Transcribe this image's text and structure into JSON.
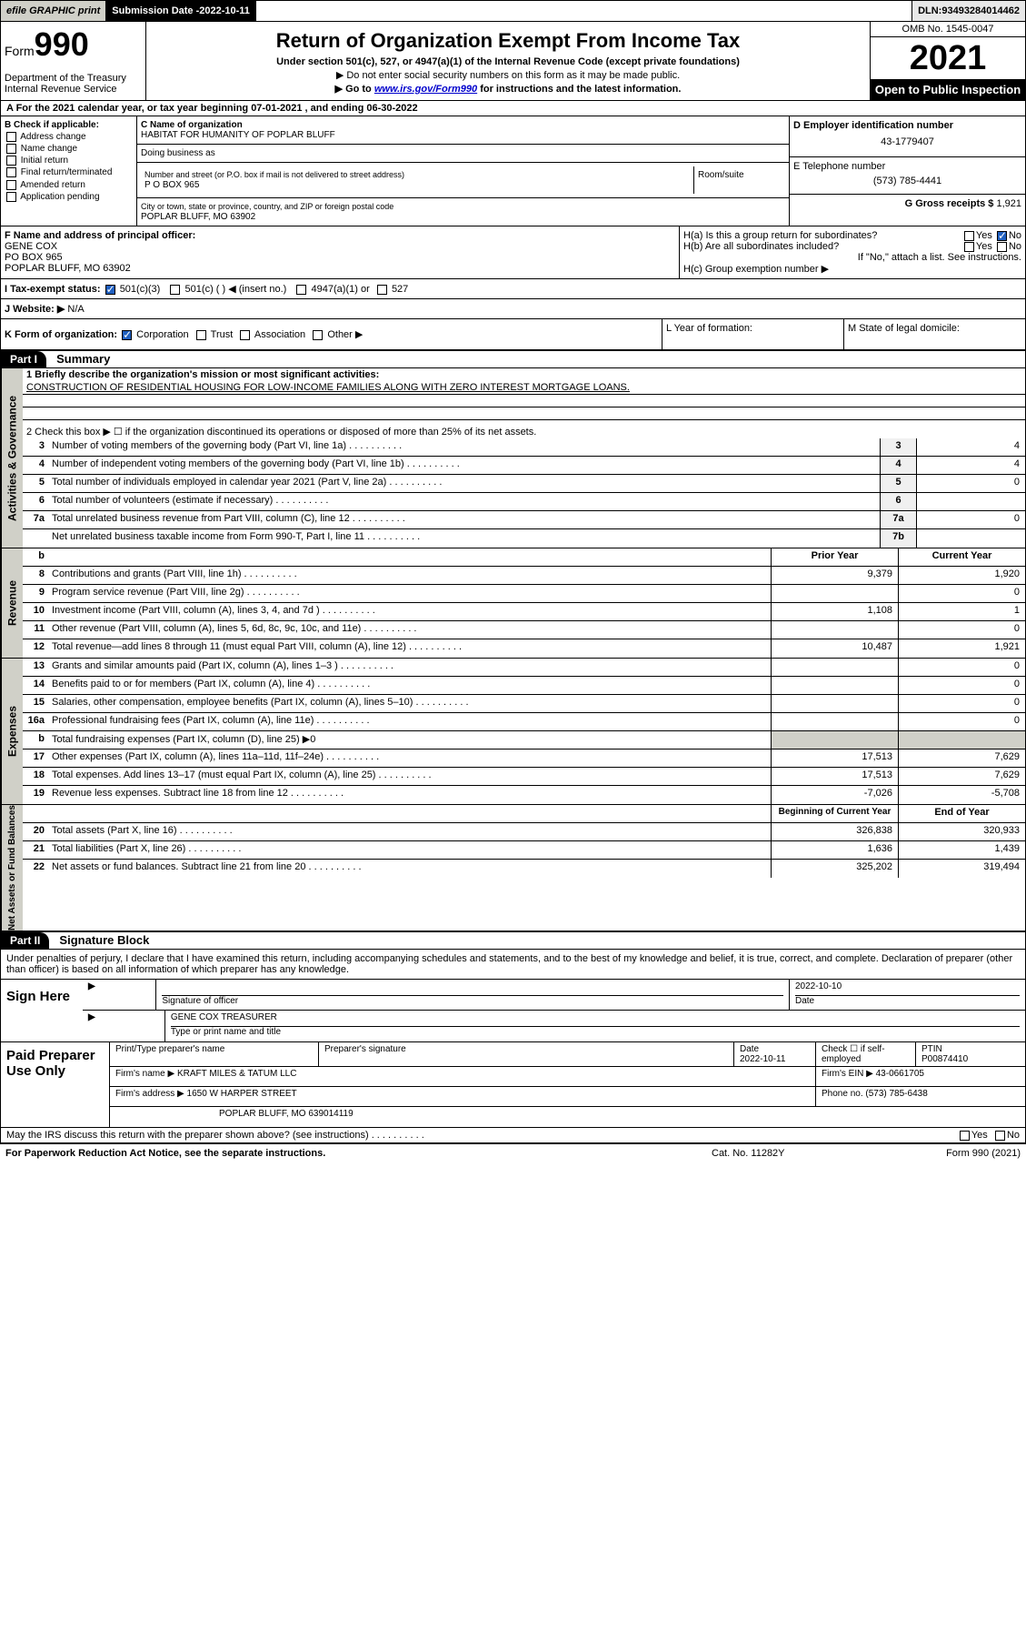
{
  "topbar": {
    "efile": "efile GRAPHIC print",
    "submission_label": "Submission Date - ",
    "submission_date": "2022-10-11",
    "dln_label": "DLN: ",
    "dln": "93493284014462"
  },
  "header": {
    "form_prefix": "Form",
    "form_num": "990",
    "dept": "Department of the Treasury\nInternal Revenue Service",
    "title": "Return of Organization Exempt From Income Tax",
    "sub1": "Under section 501(c), 527, or 4947(a)(1) of the Internal Revenue Code (except private foundations)",
    "sub2": "▶ Do not enter social security numbers on this form as it may be made public.",
    "sub3_pre": "▶ Go to ",
    "sub3_link": "www.irs.gov/Form990",
    "sub3_post": " for instructions and the latest information.",
    "omb": "OMB No. 1545-0047",
    "year": "2021",
    "open": "Open to Public Inspection"
  },
  "row_a": "A For the 2021 calendar year, or tax year beginning 07-01-2021  , and ending 06-30-2022",
  "section_b": {
    "label": "B Check if applicable:",
    "items": [
      "Address change",
      "Name change",
      "Initial return",
      "Final return/terminated",
      "Amended return",
      "Application pending"
    ]
  },
  "section_c": {
    "name_label": "C Name of organization",
    "name": "HABITAT FOR HUMANITY OF POPLAR BLUFF",
    "dba_label": "Doing business as",
    "dba": "",
    "addr_label": "Number and street (or P.O. box if mail is not delivered to street address)",
    "addr": "P O BOX 965",
    "room_label": "Room/suite",
    "city_label": "City or town, state or province, country, and ZIP or foreign postal code",
    "city": "POPLAR BLUFF, MO  63902"
  },
  "section_d": {
    "label": "D Employer identification number",
    "val": "43-1779407"
  },
  "section_e": {
    "label": "E Telephone number",
    "val": "(573) 785-4441"
  },
  "section_g": {
    "label": "G Gross receipts $ ",
    "val": "1,921"
  },
  "section_f": {
    "label": "F  Name and address of principal officer:",
    "name": "GENE COX",
    "addr1": "PO BOX 965",
    "addr2": "POPLAR BLUFF, MO  63902"
  },
  "section_h": {
    "a": "H(a)  Is this a group return for subordinates?",
    "a_yes": "Yes",
    "a_no": "No",
    "b": "H(b)  Are all subordinates included?",
    "b_yes": "Yes",
    "b_no": "No",
    "b_note": "If \"No,\" attach a list. See instructions.",
    "c": "H(c)  Group exemption number ▶"
  },
  "section_i": {
    "label": "I  Tax-exempt status:",
    "opts": [
      "501(c)(3)",
      "501(c) (  ) ◀ (insert no.)",
      "4947(a)(1) or",
      "527"
    ]
  },
  "section_j": {
    "label": "J  Website: ▶",
    "val": "N/A"
  },
  "section_k": "K Form of organization:",
  "k_opts": [
    "Corporation",
    "Trust",
    "Association",
    "Other ▶"
  ],
  "section_l": "L Year of formation:",
  "section_m": "M State of legal domicile:",
  "part1": {
    "num": "Part I",
    "title": "Summary"
  },
  "governance": {
    "label": "Activities & Governance",
    "l1_pre": "1  Briefly describe the organization's mission or most significant activities:",
    "mission": "CONSTRUCTION OF RESIDENTIAL HOUSING FOR LOW-INCOME FAMILIES ALONG WITH ZERO INTEREST MORTGAGE LOANS.",
    "l2": "2  Check this box ▶ ☐  if the organization discontinued its operations or disposed of more than 25% of its net assets.",
    "rows": [
      {
        "n": "3",
        "d": "Number of voting members of the governing body (Part VI, line 1a)",
        "b": "3",
        "v": "4"
      },
      {
        "n": "4",
        "d": "Number of independent voting members of the governing body (Part VI, line 1b)",
        "b": "4",
        "v": "4"
      },
      {
        "n": "5",
        "d": "Total number of individuals employed in calendar year 2021 (Part V, line 2a)",
        "b": "5",
        "v": "0"
      },
      {
        "n": "6",
        "d": "Total number of volunteers (estimate if necessary)",
        "b": "6",
        "v": ""
      },
      {
        "n": "7a",
        "d": "Total unrelated business revenue from Part VIII, column (C), line 12",
        "b": "7a",
        "v": "0"
      },
      {
        "n": "",
        "d": "Net unrelated business taxable income from Form 990-T, Part I, line 11",
        "b": "7b",
        "v": ""
      }
    ]
  },
  "revenue": {
    "label": "Revenue",
    "head_b": "b",
    "head_prior": "Prior Year",
    "head_curr": "Current Year",
    "rows": [
      {
        "n": "8",
        "d": "Contributions and grants (Part VIII, line 1h)",
        "p": "9,379",
        "c": "1,920"
      },
      {
        "n": "9",
        "d": "Program service revenue (Part VIII, line 2g)",
        "p": "",
        "c": "0"
      },
      {
        "n": "10",
        "d": "Investment income (Part VIII, column (A), lines 3, 4, and 7d )",
        "p": "1,108",
        "c": "1"
      },
      {
        "n": "11",
        "d": "Other revenue (Part VIII, column (A), lines 5, 6d, 8c, 9c, 10c, and 11e)",
        "p": "",
        "c": "0"
      },
      {
        "n": "12",
        "d": "Total revenue—add lines 8 through 11 (must equal Part VIII, column (A), line 12)",
        "p": "10,487",
        "c": "1,921"
      }
    ]
  },
  "expenses": {
    "label": "Expenses",
    "rows": [
      {
        "n": "13",
        "d": "Grants and similar amounts paid (Part IX, column (A), lines 1–3 )",
        "p": "",
        "c": "0"
      },
      {
        "n": "14",
        "d": "Benefits paid to or for members (Part IX, column (A), line 4)",
        "p": "",
        "c": "0"
      },
      {
        "n": "15",
        "d": "Salaries, other compensation, employee benefits (Part IX, column (A), lines 5–10)",
        "p": "",
        "c": "0"
      },
      {
        "n": "16a",
        "d": "Professional fundraising fees (Part IX, column (A), line 11e)",
        "p": "",
        "c": "0"
      },
      {
        "n": "b",
        "d": "Total fundraising expenses (Part IX, column (D), line 25) ▶0",
        "p": null,
        "c": null,
        "shaded": true
      },
      {
        "n": "17",
        "d": "Other expenses (Part IX, column (A), lines 11a–11d, 11f–24e)",
        "p": "17,513",
        "c": "7,629"
      },
      {
        "n": "18",
        "d": "Total expenses. Add lines 13–17 (must equal Part IX, column (A), line 25)",
        "p": "17,513",
        "c": "7,629"
      },
      {
        "n": "19",
        "d": "Revenue less expenses. Subtract line 18 from line 12",
        "p": "-7,026",
        "c": "-5,708"
      }
    ]
  },
  "netassets": {
    "label": "Net Assets or Fund Balances",
    "head_beg": "Beginning of Current Year",
    "head_end": "End of Year",
    "rows": [
      {
        "n": "20",
        "d": "Total assets (Part X, line 16)",
        "p": "326,838",
        "c": "320,933"
      },
      {
        "n": "21",
        "d": "Total liabilities (Part X, line 26)",
        "p": "1,636",
        "c": "1,439"
      },
      {
        "n": "22",
        "d": "Net assets or fund balances. Subtract line 21 from line 20",
        "p": "325,202",
        "c": "319,494"
      }
    ]
  },
  "part2": {
    "num": "Part II",
    "title": "Signature Block"
  },
  "sig_text": "Under penalties of perjury, I declare that I have examined this return, including accompanying schedules and statements, and to the best of my knowledge and belief, it is true, correct, and complete. Declaration of preparer (other than officer) is based on all information of which preparer has any knowledge.",
  "sign": {
    "here": "Sign Here",
    "sig_label": "Signature of officer",
    "date_label": "Date",
    "date": "2022-10-10",
    "name": "GENE COX TREASURER",
    "name_label": "Type or print name and title"
  },
  "prep": {
    "label": "Paid Preparer Use Only",
    "h1": "Print/Type preparer's name",
    "h2": "Preparer's signature",
    "h3": "Date",
    "h3v": "2022-10-11",
    "h4": "Check ☐ if self-employed",
    "h5": "PTIN",
    "h5v": "P00874410",
    "firm_label": "Firm's name    ▶",
    "firm": "KRAFT MILES & TATUM LLC",
    "ein_label": "Firm's EIN ▶",
    "ein": "43-0661705",
    "addr_label": "Firm's address ▶",
    "addr1": "1650 W HARPER STREET",
    "addr2": "POPLAR BLUFF, MO  639014119",
    "phone_label": "Phone no. ",
    "phone": "(573) 785-6438"
  },
  "may_irs": "May the IRS discuss this return with the preparer shown above? (see instructions)",
  "may_yes": "Yes",
  "may_no": "No",
  "footer": {
    "l": "For Paperwork Reduction Act Notice, see the separate instructions.",
    "c": "Cat. No. 11282Y",
    "r": "Form 990 (2021)"
  }
}
